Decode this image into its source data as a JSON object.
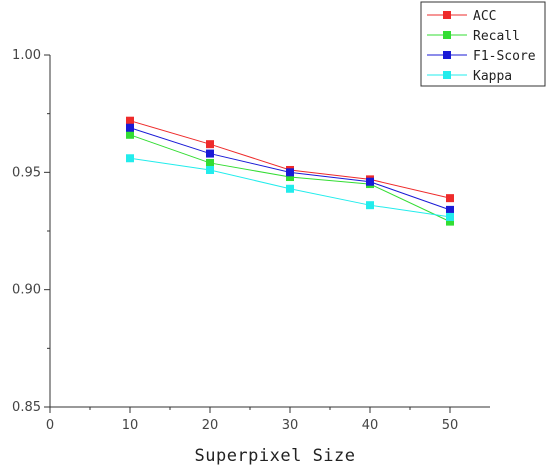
{
  "chart_data": {
    "type": "line",
    "xlabel": "Superpixel Size",
    "ylabel": "",
    "x": [
      10,
      20,
      30,
      40,
      50
    ],
    "x_ticks": [
      "0",
      "10",
      "20",
      "30",
      "40",
      "50"
    ],
    "y_ticks": [
      "0.85",
      "0.90",
      "0.95",
      "1.00"
    ],
    "xlim": [
      0,
      55
    ],
    "ylim": [
      0.85,
      1.0
    ],
    "grid": false,
    "legend_position": "top-right",
    "series": [
      {
        "name": "ACC",
        "color": "#ee2b2b",
        "values": [
          0.972,
          0.962,
          0.951,
          0.947,
          0.939
        ]
      },
      {
        "name": "Recall",
        "color": "#33dd33",
        "values": [
          0.966,
          0.954,
          0.948,
          0.945,
          0.929
        ]
      },
      {
        "name": "F1-Score",
        "color": "#1a1ad6",
        "values": [
          0.969,
          0.958,
          0.95,
          0.946,
          0.934
        ]
      },
      {
        "name": "Kappa",
        "color": "#22ecec",
        "values": [
          0.956,
          0.951,
          0.943,
          0.936,
          0.931
        ]
      }
    ]
  }
}
